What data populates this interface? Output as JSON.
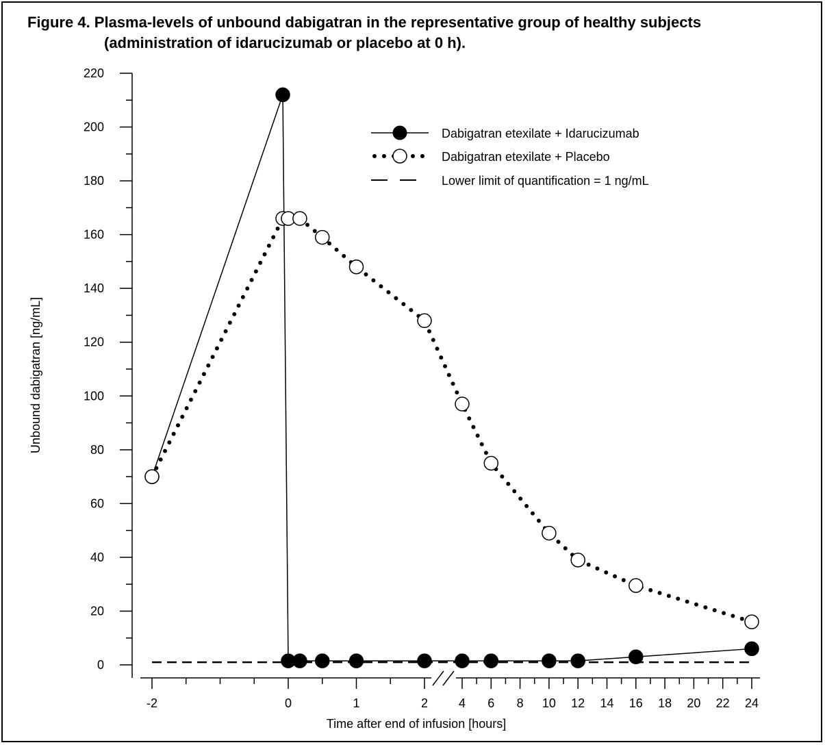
{
  "figure": {
    "title_line1": "Figure 4. Plasma-levels of unbound dabigatran in the representative group of healthy subjects",
    "title_line2": "(administration of idarucizumab or placebo at 0 h)."
  },
  "chart_data": {
    "type": "line",
    "title": "Figure 4. Plasma-levels of unbound dabigatran in the representative group of healthy subjects (administration of idarucizumab or placebo at 0 h).",
    "xlabel": "Time after end of infusion [hours]",
    "ylabel": "Unbound dabigatran [ng/mL]",
    "ylim": [
      0,
      220
    ],
    "x_axis_broken_between": [
      2,
      4
    ],
    "x_ticks_left": [
      -2,
      0,
      1,
      2
    ],
    "x_ticks_right": [
      4,
      6,
      8,
      10,
      12,
      14,
      16,
      18,
      20,
      22,
      24
    ],
    "y_ticks": [
      0,
      20,
      40,
      60,
      80,
      100,
      120,
      140,
      160,
      180,
      200,
      220
    ],
    "legend_position": "top-right",
    "grid": false,
    "series": [
      {
        "name": "Dabigatran etexilate + Idarucizumab",
        "style": "solid line, filled circles",
        "color": "#000000",
        "points": [
          {
            "x": -2,
            "y": 70
          },
          {
            "x": -0.08,
            "y": 212
          },
          {
            "x": 0,
            "y": 1.5
          },
          {
            "x": 0.17,
            "y": 1.5
          },
          {
            "x": 0.5,
            "y": 1.5
          },
          {
            "x": 1,
            "y": 1.5
          },
          {
            "x": 2,
            "y": 1.5
          },
          {
            "x": 4,
            "y": 1.5
          },
          {
            "x": 6,
            "y": 1.5
          },
          {
            "x": 10,
            "y": 1.5
          },
          {
            "x": 12,
            "y": 1.5
          },
          {
            "x": 16,
            "y": 3
          },
          {
            "x": 24,
            "y": 6
          }
        ]
      },
      {
        "name": "Dabigatran etexilate + Placebo",
        "style": "dotted line, open circles",
        "color": "#000000",
        "points": [
          {
            "x": -2,
            "y": 70
          },
          {
            "x": -0.08,
            "y": 166
          },
          {
            "x": 0,
            "y": 166
          },
          {
            "x": 0.17,
            "y": 166
          },
          {
            "x": 0.5,
            "y": 159
          },
          {
            "x": 1,
            "y": 148
          },
          {
            "x": 2,
            "y": 128
          },
          {
            "x": 4,
            "y": 97
          },
          {
            "x": 6,
            "y": 75
          },
          {
            "x": 10,
            "y": 49
          },
          {
            "x": 12,
            "y": 39
          },
          {
            "x": 16,
            "y": 29.5
          },
          {
            "x": 24,
            "y": 16
          }
        ]
      },
      {
        "name": "Lower limit of quantification = 1 ng/mL",
        "style": "dashed line",
        "color": "#000000",
        "points": [
          {
            "x": -2,
            "y": 1
          },
          {
            "x": 24,
            "y": 1
          }
        ]
      }
    ]
  }
}
